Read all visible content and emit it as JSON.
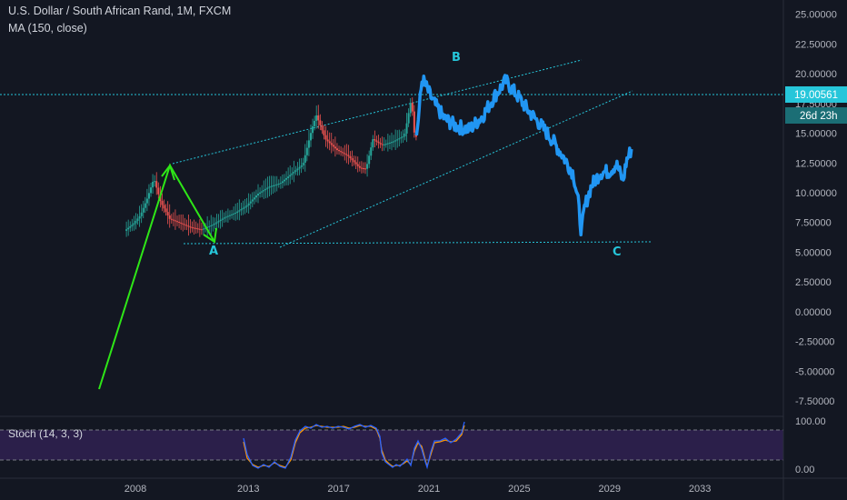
{
  "header": {
    "title": "U.S. Dollar / South African Rand, 1M, FXCM",
    "indicator": "MA (150, close)"
  },
  "price_axis": {
    "ticks": [
      "25.00000",
      "22.50000",
      "20.00000",
      "17.50000",
      "15.00000",
      "12.50000",
      "10.00000",
      "7.50000",
      "5.00000",
      "2.50000",
      "0.00000",
      "-2.50000",
      "-5.00000",
      "-7.50000"
    ],
    "last_price": "19.00561",
    "countdown": "26d 23h"
  },
  "time_axis": {
    "ticks": [
      "2008",
      "2013",
      "2017",
      "2021",
      "2025",
      "2029",
      "2033"
    ]
  },
  "stoch": {
    "label": "Stoch (14, 3, 3)",
    "ticks": [
      "100.00",
      "0.00"
    ]
  },
  "waves": {
    "a": "A",
    "b": "B",
    "c": "C"
  },
  "colors": {
    "background": "#131722",
    "projection": "#2196f3",
    "arrow": "#2ee617",
    "channel": "#26c6da",
    "candle_up": "#26a69a",
    "candle_down": "#ef5350",
    "stoch_bg": "#4a2a7a",
    "stoch_k": "#2962ff",
    "stoch_d": "#ff9800"
  },
  "chart_data": {
    "type": "candlestick",
    "symbol": "USDZAR",
    "interval": "1M",
    "price_ylim": [
      -8.8,
      26.2
    ],
    "x_range": [
      2002.0,
      2036.7
    ],
    "history": [
      [
        2007.6,
        6.8
      ],
      [
        2008.0,
        7.4
      ],
      [
        2008.3,
        8.1
      ],
      [
        2008.6,
        9.5
      ],
      [
        2008.9,
        11.2
      ],
      [
        2009.2,
        9.2
      ],
      [
        2009.6,
        7.8
      ],
      [
        2010.0,
        7.5
      ],
      [
        2010.5,
        7.1
      ],
      [
        2011.0,
        6.9
      ],
      [
        2011.5,
        7.3
      ],
      [
        2012.0,
        7.9
      ],
      [
        2012.5,
        8.3
      ],
      [
        2013.0,
        8.9
      ],
      [
        2013.5,
        9.9
      ],
      [
        2014.0,
        10.5
      ],
      [
        2014.5,
        10.8
      ],
      [
        2015.0,
        11.6
      ],
      [
        2015.5,
        12.4
      ],
      [
        2015.9,
        15.4
      ],
      [
        2016.1,
        16.5
      ],
      [
        2016.5,
        14.5
      ],
      [
        2017.0,
        13.6
      ],
      [
        2017.5,
        13.1
      ],
      [
        2018.0,
        12.1
      ],
      [
        2018.3,
        12.0
      ],
      [
        2018.6,
        14.5
      ],
      [
        2019.0,
        14.0
      ],
      [
        2019.5,
        14.3
      ],
      [
        2020.0,
        14.8
      ],
      [
        2020.3,
        17.9
      ],
      [
        2020.45,
        14.7
      ]
    ],
    "projection": [
      [
        2020.45,
        14.7
      ],
      [
        2020.7,
        19.6
      ],
      [
        2021.2,
        17.6
      ],
      [
        2021.7,
        16.2
      ],
      [
        2022.2,
        15.6
      ],
      [
        2022.8,
        15.3
      ],
      [
        2023.4,
        16.5
      ],
      [
        2023.9,
        18.1
      ],
      [
        2024.4,
        19.4
      ],
      [
        2024.9,
        18.2
      ],
      [
        2025.4,
        16.9
      ],
      [
        2025.9,
        15.8
      ],
      [
        2026.4,
        14.6
      ],
      [
        2026.9,
        13.2
      ],
      [
        2027.4,
        11.6
      ],
      [
        2027.6,
        9.4
      ],
      [
        2027.75,
        6.7
      ],
      [
        2027.9,
        8.8
      ],
      [
        2028.2,
        10.6
      ],
      [
        2028.6,
        11.7
      ],
      [
        2029.0,
        11.8
      ],
      [
        2029.3,
        12.4
      ],
      [
        2029.6,
        11.0
      ],
      [
        2029.75,
        12.7
      ],
      [
        2030.0,
        13.8
      ]
    ]
  }
}
